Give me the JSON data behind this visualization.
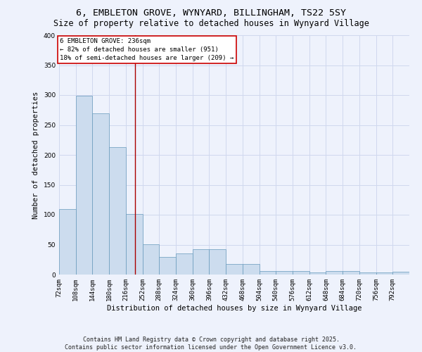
{
  "title": "6, EMBLETON GROVE, WYNYARD, BILLINGHAM, TS22 5SY",
  "subtitle": "Size of property relative to detached houses in Wynyard Village",
  "xlabel": "Distribution of detached houses by size in Wynyard Village",
  "ylabel": "Number of detached properties",
  "bar_values": [
    110,
    299,
    270,
    213,
    101,
    51,
    30,
    35,
    42,
    42,
    18,
    18,
    6,
    6,
    6,
    3,
    6,
    6,
    3,
    3,
    5
  ],
  "bin_edges": [
    72,
    108,
    144,
    180,
    216,
    252,
    288,
    324,
    360,
    396,
    432,
    468,
    504,
    540,
    576,
    612,
    648,
    684,
    720,
    756,
    792,
    828
  ],
  "tick_labels": [
    "72sqm",
    "108sqm",
    "144sqm",
    "180sqm",
    "216sqm",
    "252sqm",
    "288sqm",
    "324sqm",
    "360sqm",
    "396sqm",
    "432sqm",
    "468sqm",
    "504sqm",
    "540sqm",
    "576sqm",
    "612sqm",
    "648sqm",
    "684sqm",
    "720sqm",
    "756sqm",
    "792sqm"
  ],
  "bar_color": "#ccdcee",
  "bar_edge_color": "#6699bb",
  "grid_color": "#d0d8ee",
  "background_color": "#eef2fc",
  "red_line_x": 236,
  "annotation_text": "6 EMBLETON GROVE: 236sqm\n← 82% of detached houses are smaller (951)\n18% of semi-detached houses are larger (209) →",
  "annotation_box_color": "#ffffff",
  "annotation_border_color": "#cc0000",
  "ylim": [
    0,
    400
  ],
  "xlim": [
    72,
    828
  ],
  "footer": "Contains HM Land Registry data © Crown copyright and database right 2025.\nContains public sector information licensed under the Open Government Licence v3.0.",
  "title_fontsize": 9.5,
  "subtitle_fontsize": 8.5,
  "axis_label_fontsize": 7.5,
  "tick_fontsize": 6.5,
  "annotation_fontsize": 6.5,
  "footer_fontsize": 6
}
